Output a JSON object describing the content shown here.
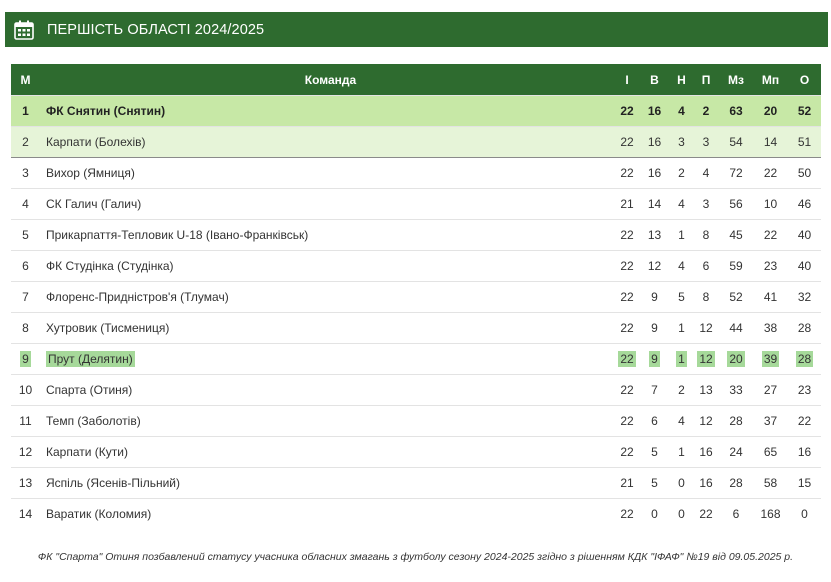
{
  "header": {
    "title": "ПЕРШІСТЬ ОБЛАСТІ 2024/2025",
    "icon": "calendar-icon"
  },
  "table": {
    "columns": [
      "М",
      "Команда",
      "І",
      "В",
      "Н",
      "П",
      "Мз",
      "Мп",
      "О"
    ],
    "rows": [
      {
        "pos": "1",
        "team": "ФК Снятин (Снятин)",
        "g": "22",
        "w": "16",
        "d": "4",
        "l": "2",
        "gf": "63",
        "ga": "20",
        "pts": "52"
      },
      {
        "pos": "2",
        "team": "Карпати (Болехів)",
        "g": "22",
        "w": "16",
        "d": "3",
        "l": "3",
        "gf": "54",
        "ga": "14",
        "pts": "51"
      },
      {
        "pos": "3",
        "team": "Вихор (Ямниця)",
        "g": "22",
        "w": "16",
        "d": "2",
        "l": "4",
        "gf": "72",
        "ga": "22",
        "pts": "50"
      },
      {
        "pos": "4",
        "team": "СК Галич (Галич)",
        "g": "21",
        "w": "14",
        "d": "4",
        "l": "3",
        "gf": "56",
        "ga": "10",
        "pts": "46"
      },
      {
        "pos": "5",
        "team": "Прикарпаття-Тепловик U-18 (Івано-Франківськ)",
        "g": "22",
        "w": "13",
        "d": "1",
        "l": "8",
        "gf": "45",
        "ga": "22",
        "pts": "40"
      },
      {
        "pos": "6",
        "team": "ФК Студінка (Студінка)",
        "g": "22",
        "w": "12",
        "d": "4",
        "l": "6",
        "gf": "59",
        "ga": "23",
        "pts": "40"
      },
      {
        "pos": "7",
        "team": "Флоренс-Придністров'я (Тлумач)",
        "g": "22",
        "w": "9",
        "d": "5",
        "l": "8",
        "gf": "52",
        "ga": "41",
        "pts": "32"
      },
      {
        "pos": "8",
        "team": "Хутровик (Тисмениця)",
        "g": "22",
        "w": "9",
        "d": "1",
        "l": "12",
        "gf": "44",
        "ga": "38",
        "pts": "28"
      },
      {
        "pos": "9",
        "team": "Прут (Делятин)",
        "g": "22",
        "w": "9",
        "d": "1",
        "l": "12",
        "gf": "20",
        "ga": "39",
        "pts": "28"
      },
      {
        "pos": "10",
        "team": "Спарта (Отиня)",
        "g": "22",
        "w": "7",
        "d": "2",
        "l": "13",
        "gf": "33",
        "ga": "27",
        "pts": "23"
      },
      {
        "pos": "11",
        "team": "Темп (Заболотів)",
        "g": "22",
        "w": "6",
        "d": "4",
        "l": "12",
        "gf": "28",
        "ga": "37",
        "pts": "22"
      },
      {
        "pos": "12",
        "team": "Карпати (Кути)",
        "g": "22",
        "w": "5",
        "d": "1",
        "l": "16",
        "gf": "24",
        "ga": "65",
        "pts": "16"
      },
      {
        "pos": "13",
        "team": "Яспіль (Ясенів-Пільний)",
        "g": "21",
        "w": "5",
        "d": "0",
        "l": "16",
        "gf": "28",
        "ga": "58",
        "pts": "15"
      },
      {
        "pos": "14",
        "team": "Варатик (Коломия)",
        "g": "22",
        "w": "0",
        "d": "0",
        "l": "22",
        "gf": "6",
        "ga": "168",
        "pts": "0"
      }
    ]
  },
  "footnote": "ФК \"Спарта\" Отиня позбавлений статусу учасника обласних змагань з футболу сезону 2024-2025 згідно з рішенням КДК \"ІФАФ\" №19 від 09.05.2025 р.",
  "colors": {
    "header_bg": "#2e6b2f",
    "leader_row": "#c7e8a6",
    "second_row": "#e6f4d8",
    "text_highlight": "#a6d99a"
  }
}
